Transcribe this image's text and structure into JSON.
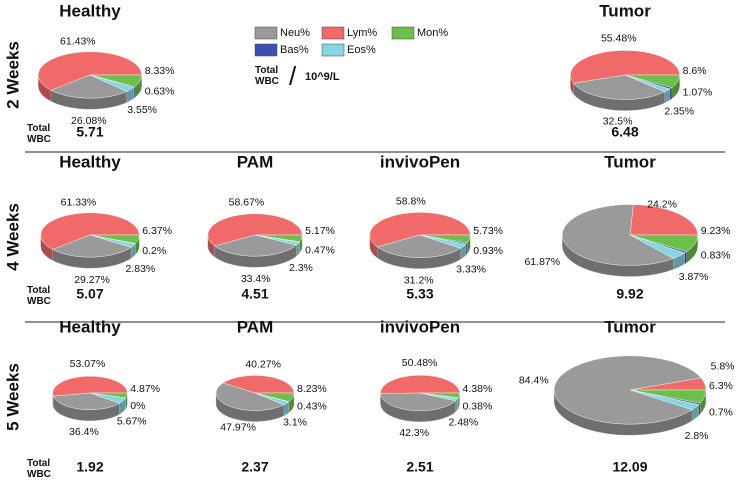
{
  "legend": {
    "names": [
      "Neu%",
      "Lym%",
      "Mon%",
      "Bas%",
      "Eos%"
    ],
    "colors": [
      "#9a9a9a",
      "#f06a6a",
      "#6cc04a",
      "#3f4fb0",
      "#86d6e2"
    ]
  },
  "unit_note": {
    "label": "Total WBC",
    "slash": "/",
    "unit": "10^9/L"
  },
  "rows": [
    "2 Weeks",
    "4 Weeks",
    "5 Weeks"
  ],
  "total_wbc_label": "Total WBC",
  "chart_data": [
    {
      "type": "pie",
      "title": "Healthy",
      "values": [
        26.08,
        61.43,
        8.33,
        0.63,
        3.55
      ],
      "value_labels": [
        "26.08%",
        "61.43%",
        "8.33%",
        "0.63%",
        "3.55%"
      ],
      "total_wbc": 5.71
    },
    {
      "type": "pie",
      "title": "Tumor",
      "values": [
        32.5,
        55.48,
        8.6,
        1.07,
        2.35
      ],
      "value_labels": [
        "32.5%",
        "55.48%",
        "8.6%",
        "1.07%",
        "2.35%"
      ],
      "total_wbc": 6.48
    },
    {
      "type": "pie",
      "title": "Healthy",
      "values": [
        29.27,
        61.33,
        6.37,
        0.2,
        2.83
      ],
      "value_labels": [
        "29.27%",
        "61.33%",
        "6.37%",
        "0.2%",
        "2.83%"
      ],
      "total_wbc": 5.07
    },
    {
      "type": "pie",
      "title": "PAM",
      "values": [
        33.4,
        58.67,
        5.17,
        0.47,
        2.3
      ],
      "value_labels": [
        "33.4%",
        "58.67%",
        "5.17%",
        "0.47%",
        "2.3%"
      ],
      "total_wbc": 4.51
    },
    {
      "type": "pie",
      "title": "invivoPen",
      "values": [
        31.2,
        58.8,
        5.73,
        0.93,
        3.33
      ],
      "value_labels": [
        "31.2%",
        "58.8%",
        "5.73%",
        "0.93%",
        "3.33%"
      ],
      "total_wbc": 5.33
    },
    {
      "type": "pie",
      "title": "Tumor",
      "values": [
        61.87,
        24.2,
        9.23,
        0.83,
        3.87
      ],
      "value_labels": [
        "61.87%",
        "24.2%",
        "9.23%",
        "0.83%",
        "3.87%"
      ],
      "total_wbc": 9.92
    },
    {
      "type": "pie",
      "title": "Healthy",
      "values": [
        36.4,
        53.07,
        4.87,
        0,
        5.67
      ],
      "value_labels": [
        "36.4%",
        "53.07%",
        "4.87%",
        "0%",
        "5.67%"
      ],
      "total_wbc": 1.92
    },
    {
      "type": "pie",
      "title": "PAM",
      "values": [
        47.97,
        40.27,
        8.23,
        0.43,
        3.1
      ],
      "value_labels": [
        "47.97%",
        "40.27%",
        "8.23%",
        "0.43%",
        "3.1%"
      ],
      "total_wbc": 2.37
    },
    {
      "type": "pie",
      "title": "invivoPen",
      "values": [
        42.3,
        50.48,
        4.38,
        0.38,
        2.48
      ],
      "value_labels": [
        "42.3%",
        "50.48%",
        "4.38%",
        "0.38%",
        "2.48%"
      ],
      "total_wbc": 2.51
    },
    {
      "type": "pie",
      "title": "Tumor",
      "values": [
        84.4,
        5.8,
        6.3,
        0.7,
        2.8
      ],
      "value_labels": [
        "84.4%",
        "5.8%",
        "6.3%",
        "0.7%",
        "2.8%"
      ],
      "total_wbc": 12.09
    }
  ]
}
